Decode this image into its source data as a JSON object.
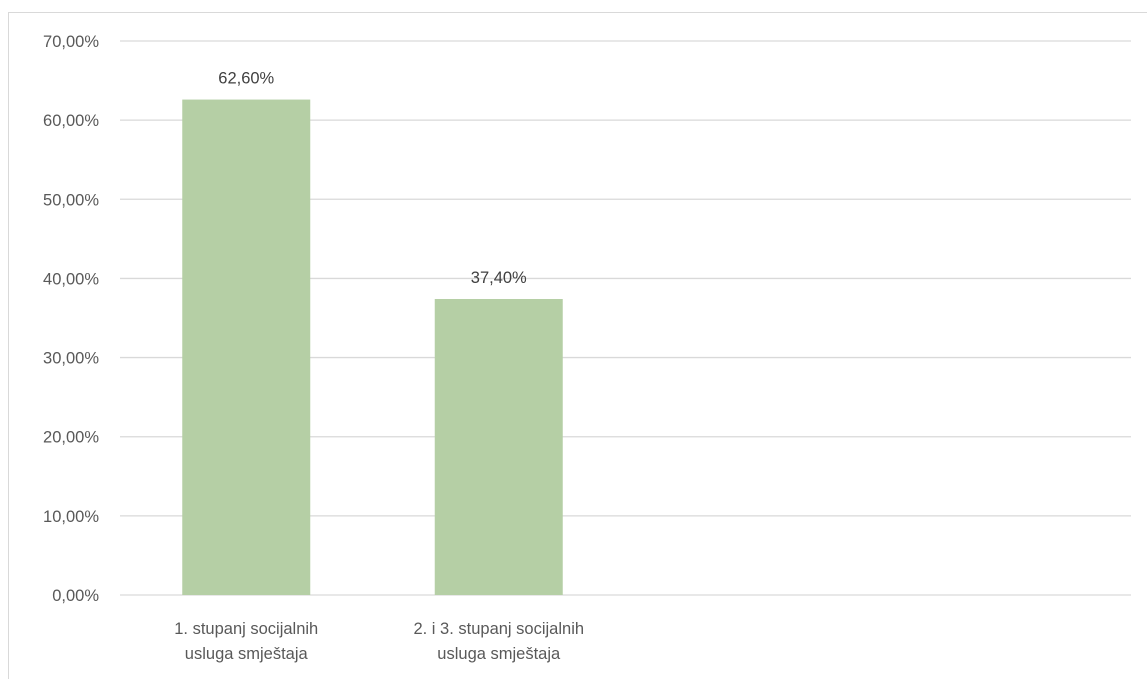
{
  "chart_data": {
    "type": "bar",
    "title": "",
    "xlabel": "",
    "ylabel": "",
    "categories": [
      [
        "1. stupanj socijalnih",
        "usluga smještaja"
      ],
      [
        "2. i 3. stupanj socijalnih",
        "usluga smještaja"
      ]
    ],
    "values": [
      62.6,
      37.4
    ],
    "data_labels": [
      "62,60%",
      "37,40%"
    ],
    "ylim": [
      0,
      70
    ],
    "yticks": [
      0,
      10,
      20,
      30,
      40,
      50,
      60,
      70
    ],
    "ytick_labels": [
      "0,00%",
      "10,00%",
      "20,00%",
      "30,00%",
      "40,00%",
      "50,00%",
      "60,00%",
      "70,00%"
    ],
    "grid": true,
    "legend": "none",
    "colors": {
      "bar": "#b5cfa5",
      "grid": "#d9d9d9",
      "text": "#595959"
    }
  }
}
